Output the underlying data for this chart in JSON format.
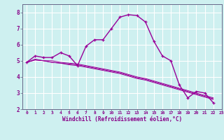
{
  "xlabel": "Windchill (Refroidissement éolien,°C)",
  "bg_color": "#cef0f0",
  "grid_color": "#ffffff",
  "line_color": "#990099",
  "xlim": [
    -0.5,
    23
  ],
  "ylim": [
    2,
    8.5
  ],
  "yticks": [
    2,
    3,
    4,
    5,
    6,
    7,
    8
  ],
  "xticks": [
    0,
    1,
    2,
    3,
    4,
    5,
    6,
    7,
    8,
    9,
    10,
    11,
    12,
    13,
    14,
    15,
    16,
    17,
    18,
    19,
    20,
    21,
    22,
    23
  ],
  "series_main": [
    4.9,
    5.3,
    5.2,
    5.2,
    5.5,
    5.3,
    4.7,
    5.9,
    6.3,
    6.3,
    7.0,
    7.7,
    7.85,
    7.8,
    7.4,
    6.2,
    5.3,
    5.0,
    3.5,
    2.7,
    3.1,
    3.0,
    2.4
  ],
  "series_linear": [
    [
      4.9,
      5.05,
      5.0,
      4.9,
      4.85,
      4.8,
      4.75,
      4.65,
      4.55,
      4.45,
      4.35,
      4.25,
      4.1,
      3.95,
      3.85,
      3.7,
      3.55,
      3.4,
      3.25,
      3.1,
      2.95,
      2.8,
      2.65
    ],
    [
      4.9,
      5.05,
      5.0,
      4.9,
      4.85,
      4.75,
      4.7,
      4.6,
      4.5,
      4.4,
      4.3,
      4.2,
      4.05,
      3.9,
      3.8,
      3.65,
      3.5,
      3.35,
      3.2,
      3.05,
      2.9,
      2.75,
      2.6
    ],
    [
      4.9,
      5.1,
      5.0,
      5.0,
      4.9,
      4.85,
      4.8,
      4.7,
      4.6,
      4.5,
      4.4,
      4.3,
      4.15,
      4.0,
      3.9,
      3.75,
      3.6,
      3.45,
      3.3,
      3.15,
      3.0,
      2.85,
      2.7
    ]
  ]
}
